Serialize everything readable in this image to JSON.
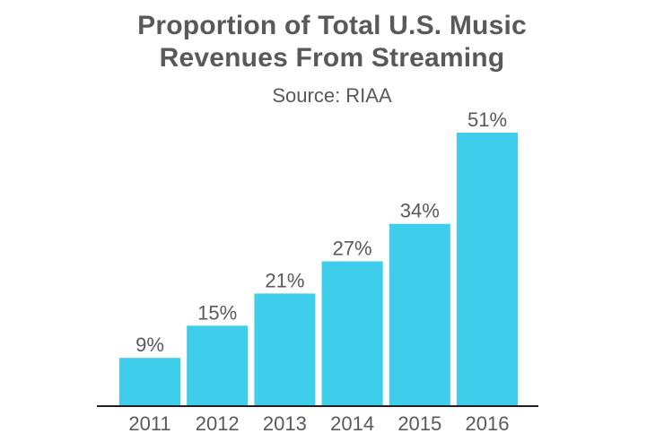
{
  "chart_data": {
    "type": "bar",
    "title_lines": [
      "Proportion of Total U.S. Music",
      "Revenues From Streaming"
    ],
    "subtitle": "Source: RIAA",
    "categories": [
      "2011",
      "2012",
      "2013",
      "2014",
      "2015",
      "2016"
    ],
    "values": [
      9,
      15,
      21,
      27,
      34,
      51
    ],
    "data_labels": [
      "9%",
      "15%",
      "21%",
      "27%",
      "34%",
      "51%"
    ],
    "unit": "%",
    "xlabel": "",
    "ylabel": "",
    "ylim": [
      0,
      51
    ],
    "grid": false,
    "legend": "none",
    "colors": {
      "bar": "#3ecdea",
      "text": "#58595b",
      "axis": "#231f20"
    }
  }
}
